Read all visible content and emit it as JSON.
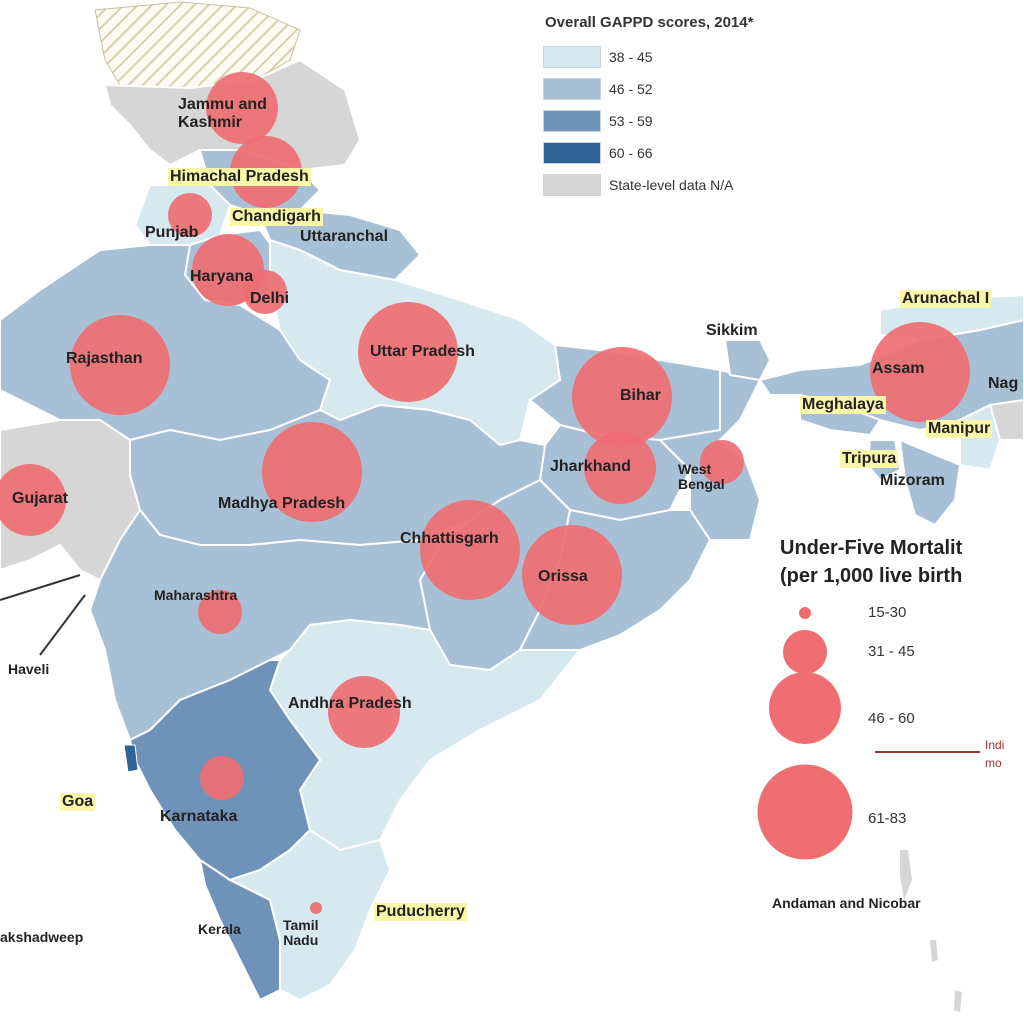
{
  "colors": {
    "score_38_45": "#d6e8f0",
    "score_46_52": "#a8c0d6",
    "score_53_59": "#6f93b8",
    "score_60_66": "#2f6395",
    "no_data": "#d6d6d6",
    "bubble": "#ef6e72",
    "highlight": "#fbf7a8"
  },
  "gappd_legend": {
    "title": "Overall GAPPD scores, 2014*",
    "items": [
      {
        "label": "38 - 45",
        "color_key": "score_38_45"
      },
      {
        "label": "46 - 52",
        "color_key": "score_46_52"
      },
      {
        "label": "53 - 59",
        "color_key": "score_53_59"
      },
      {
        "label": "60 - 66",
        "color_key": "score_60_66"
      },
      {
        "label": "State-level data N/A",
        "color_key": "no_data"
      }
    ]
  },
  "u5mr_legend": {
    "title_line1": "Under-Five Mortalit",
    "title_line2": "(per 1,000 live birth",
    "items": [
      {
        "label": "15-30"
      },
      {
        "label": "31 - 45"
      },
      {
        "label": "46 - 60"
      },
      {
        "label": "61-83"
      }
    ],
    "note_line1": "Indi",
    "note_line2": "mo"
  },
  "labels": {
    "jammu_kashmir": "Jammu and Kashmir",
    "himachal": "Himachal Pradesh",
    "chandigarh": "Chandigarh",
    "punjab": "Punjab",
    "uttaranchal": "Uttaranchal",
    "haryana": "Haryana",
    "delhi": "Delhi",
    "rajasthan": "Rajasthan",
    "uttar_pradesh": "Uttar Pradesh",
    "bihar": "Bihar",
    "sikkim": "Sikkim",
    "arunachal": "Arunachal I",
    "assam": "Assam",
    "nagaland": "Nag",
    "meghalaya": "Meghalaya",
    "manipur": "Manipur",
    "tripura": "Tripura",
    "mizoram": "Mizoram",
    "jharkhand": "Jharkhand",
    "west_bengal": "West Bengal",
    "gujarat": "Gujarat",
    "madhya_pradesh": "Madhya Pradesh",
    "chhattisgarh": "Chhattisgarh",
    "orissa": "Orissa",
    "maharashtra": "Maharashtra",
    "haveli": "Haveli",
    "andhra_pradesh": "Andhra Pradesh",
    "goa": "Goa",
    "karnataka": "Karnataka",
    "tamil_nadu": "Tamil Nadu",
    "puducherry": "Puducherry",
    "kerala": "Kerala",
    "lakshadweep": "akshadweep",
    "andaman": "Andaman and Nicobar"
  },
  "states": [
    {
      "name": "Jammu and Kashmir",
      "gappd": "State-level data N/A",
      "u5mr": "46 - 60"
    },
    {
      "name": "Himachal Pradesh",
      "gappd": "46 - 52",
      "u5mr": "46 - 60"
    },
    {
      "name": "Punjab",
      "gappd": "38 - 45",
      "u5mr": "31 - 45"
    },
    {
      "name": "Haryana",
      "gappd": "46 - 52",
      "u5mr": "46 - 60"
    },
    {
      "name": "Delhi",
      "gappd": "38 - 45",
      "u5mr": "31 - 45"
    },
    {
      "name": "Uttaranchal",
      "gappd": "46 - 52",
      "u5mr": ""
    },
    {
      "name": "Rajasthan",
      "gappd": "46 - 52",
      "u5mr": "61-83"
    },
    {
      "name": "Uttar Pradesh",
      "gappd": "38 - 45",
      "u5mr": "61-83"
    },
    {
      "name": "Bihar",
      "gappd": "46 - 52",
      "u5mr": "61-83"
    },
    {
      "name": "Assam",
      "gappd": "46 - 52",
      "u5mr": "61-83"
    },
    {
      "name": "Jharkhand",
      "gappd": "46 - 52",
      "u5mr": "46 - 60"
    },
    {
      "name": "West Bengal",
      "gappd": "46 - 52",
      "u5mr": "31 - 45"
    },
    {
      "name": "Gujarat",
      "gappd": "State-level data N/A",
      "u5mr": "46 - 60"
    },
    {
      "name": "Madhya Pradesh",
      "gappd": "46 - 52",
      "u5mr": "61-83"
    },
    {
      "name": "Chhattisgarh",
      "gappd": "46 - 52",
      "u5mr": "61-83"
    },
    {
      "name": "Orissa",
      "gappd": "46 - 52",
      "u5mr": "61-83"
    },
    {
      "name": "Maharashtra",
      "gappd": "46 - 52",
      "u5mr": "31 - 45"
    },
    {
      "name": "Andhra Pradesh",
      "gappd": "38 - 45",
      "u5mr": "46 - 60"
    },
    {
      "name": "Karnataka",
      "gappd": "53 - 59",
      "u5mr": "31 - 45"
    },
    {
      "name": "Goa",
      "gappd": "60 - 66",
      "u5mr": ""
    },
    {
      "name": "Tamil Nadu",
      "gappd": "38 - 45",
      "u5mr": "15-30"
    },
    {
      "name": "Kerala",
      "gappd": "53 - 59",
      "u5mr": ""
    }
  ]
}
